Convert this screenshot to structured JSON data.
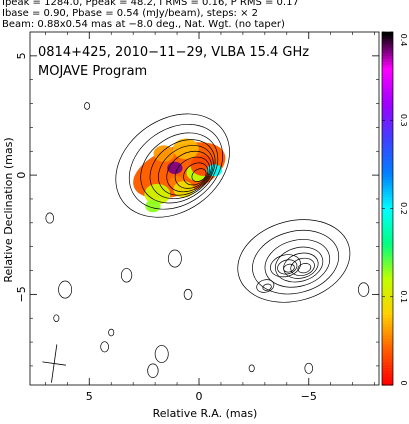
{
  "header": {
    "line1": "Ipeak = 1284.0, Ppeak = 48.2, I RMS = 0.16, P RMS = 0.17",
    "line2": "Ibase = 0.90, Pbase = 0.54 (mJy/beam), steps: × 2",
    "line3": "Beam: 0.88x0.54 mas at −8.0 deg., Nat. Wgt. (no taper)"
  },
  "chart_data": {
    "type": "heatmap",
    "title": "0814+425, 2010−11−29, VLBA 15.4 GHz",
    "subtitle": "MOJAVE Program",
    "xlabel": "Relative R.A. (mas)",
    "ylabel": "Relative Declination (mas)",
    "xlim": [
      7.7,
      -8.2
    ],
    "ylim": [
      -8.8,
      6.0
    ],
    "x_ticks": [
      5,
      0,
      -5
    ],
    "x_tick_labels": [
      "5",
      "0",
      "−5"
    ],
    "y_ticks": [
      5,
      0,
      -5
    ],
    "y_tick_labels": [
      "5",
      "0",
      "−5"
    ],
    "core": {
      "x": 0.0,
      "y": 0.0,
      "contour_radii_mas": [
        0.35,
        0.6,
        0.85,
        1.1,
        1.35,
        1.6,
        1.9,
        2.3,
        2.8
      ],
      "axis_ratio": 0.75,
      "position_angle_deg": 35
    },
    "jet_knots": [
      {
        "x": -4.8,
        "y": -3.9,
        "contour_radii_mas": [
          0.3,
          0.55,
          0.8,
          1.1,
          1.5,
          2.0,
          2.6
        ]
      },
      {
        "x": -4.1,
        "y": -3.9,
        "contour_radii_mas": [
          0.25,
          0.45,
          0.7
        ]
      },
      {
        "x": -3.1,
        "y": -4.7,
        "contour_radii_mas": [
          0.2,
          0.4
        ]
      }
    ],
    "noise_contours": [
      {
        "x": 5.1,
        "y": 2.9
      },
      {
        "x": 6.8,
        "y": -1.8
      },
      {
        "x": 3.3,
        "y": -4.2
      },
      {
        "x": 6.1,
        "y": -4.8
      },
      {
        "x": 6.5,
        "y": -6.0
      },
      {
        "x": 4.3,
        "y": -7.2
      },
      {
        "x": 2.1,
        "y": -8.2
      },
      {
        "x": 1.1,
        "y": -3.5
      },
      {
        "x": -2.4,
        "y": -8.1
      },
      {
        "x": -5.0,
        "y": -8.1
      },
      {
        "x": -7.5,
        "y": -4.8
      },
      {
        "x": 1.7,
        "y": -7.5
      },
      {
        "x": 4.0,
        "y": -6.6
      },
      {
        "x": 0.5,
        "y": -5.0
      }
    ],
    "polarization_patches": [
      {
        "x": 1.1,
        "y": 0.3,
        "value": 0.38
      },
      {
        "x": 0.1,
        "y": 0.1,
        "value": 0.12
      },
      {
        "x": -0.2,
        "y": 0.4,
        "value": 0.03
      },
      {
        "x": 1.0,
        "y": -0.3,
        "value": 0.05
      },
      {
        "x": 1.6,
        "y": 0.9,
        "value": 0.06
      },
      {
        "x": 0.6,
        "y": 1.1,
        "value": 0.07
      },
      {
        "x": -0.7,
        "y": 0.2,
        "value": 0.2
      },
      {
        "x": 0.7,
        "y": -0.6,
        "value": 0.09
      },
      {
        "x": 1.9,
        "y": -0.8,
        "value": 0.11
      },
      {
        "x": 2.1,
        "y": -1.3,
        "value": 0.13
      }
    ],
    "colorbar": {
      "min": 0,
      "max": 0.4,
      "ticks": [
        0,
        0.1,
        0.2,
        0.3,
        0.4
      ],
      "tick_labels": [
        "0",
        "0.1",
        "0.2",
        "0.3",
        "0.4"
      ],
      "colors": [
        "#ff0000",
        "#ff6000",
        "#ffd000",
        "#c0ff00",
        "#00ff80",
        "#00ffff",
        "#0080ff",
        "#4040ff",
        "#a000ff",
        "#ff00ff",
        "#000000"
      ]
    },
    "beam": {
      "major_mas": 0.88,
      "minor_mas": 0.54,
      "pa_deg": -8.0
    }
  }
}
